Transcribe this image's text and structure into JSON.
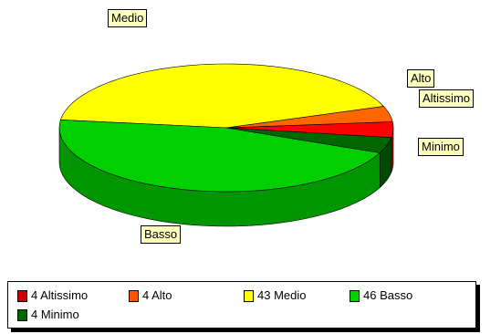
{
  "chart_data": {
    "type": "pie",
    "style": "3d",
    "title": "",
    "slices": [
      {
        "label": "Altissimo",
        "value": 4,
        "color": "#ff0000"
      },
      {
        "label": "Alto",
        "value": 4,
        "color": "#ff6600"
      },
      {
        "label": "Medio",
        "value": 43,
        "color": "#ffff00"
      },
      {
        "label": "Basso",
        "value": 46,
        "color": "#00d000"
      },
      {
        "label": "Minimo",
        "value": 4,
        "color": "#006600"
      }
    ],
    "legend": {
      "placement": "bottom",
      "entries": [
        "4 Altissimo",
        "4 Alto",
        "43 Medio",
        "46 Basso",
        "4 Minimo"
      ]
    },
    "callouts": {
      "medio": "Medio",
      "alto": "Alto",
      "altissimo": "Altissimo",
      "minimo": "Minimo",
      "basso": "Basso"
    }
  }
}
